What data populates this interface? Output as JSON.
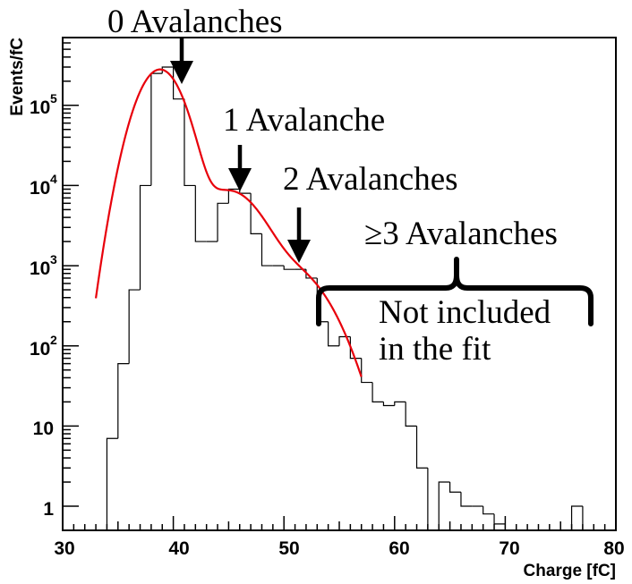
{
  "chart_data": {
    "type": "histogram",
    "xlabel": "Charge [fC]",
    "ylabel": "Events/fC",
    "xlim": [
      30,
      80
    ],
    "ylim": [
      0.5,
      700000
    ],
    "yscale": "log",
    "grid": false,
    "x_ticks": [
      "30",
      "40",
      "50",
      "60",
      "70",
      "80"
    ],
    "y_ticks": [
      {
        "base": "1",
        "exp": ""
      },
      {
        "base": "10",
        "exp": ""
      },
      {
        "base": "10",
        "exp": "2"
      },
      {
        "base": "10",
        "exp": "3"
      },
      {
        "base": "10",
        "exp": "4"
      },
      {
        "base": "10",
        "exp": "5"
      }
    ],
    "bin_width": 1,
    "bin_edges_start": 30,
    "histogram_values": [
      0,
      0,
      0,
      0,
      7,
      60,
      500,
      10000,
      250000,
      300000,
      120000,
      10000,
      2000,
      2000,
      6000,
      9000,
      8000,
      2500,
      1000,
      1000,
      900,
      900,
      700,
      200,
      100,
      130,
      70,
      35,
      20,
      18,
      20,
      10,
      3,
      0.35,
      2,
      1.5,
      1,
      1,
      0.8,
      0.6,
      0.35,
      0.35,
      0.35,
      0.35,
      0.35,
      0.35,
      1,
      0.35,
      0.35,
      0.35
    ],
    "fit": {
      "color": "#e8000b",
      "peaks": [
        {
          "mean": 38.8,
          "sigma": 1.6,
          "amplitude": 280000
        },
        {
          "mean": 45.0,
          "sigma": 2.3,
          "amplitude": 8500
        },
        {
          "mean": 50.6,
          "sigma": 2.6,
          "amplitude": 850
        }
      ],
      "x_range": [
        33,
        57
      ]
    },
    "annotations": [
      {
        "text": "0 Avalanches",
        "arrow_to_x": 39.8
      },
      {
        "text": "1 Avalanche",
        "arrow_to_x": 45.5
      },
      {
        "text": "2 Avalanches",
        "arrow_to_x": 50.8
      },
      {
        "text": "≥3 Avalanches"
      },
      {
        "text_lines": [
          "Not included",
          "in the fit"
        ]
      }
    ]
  }
}
